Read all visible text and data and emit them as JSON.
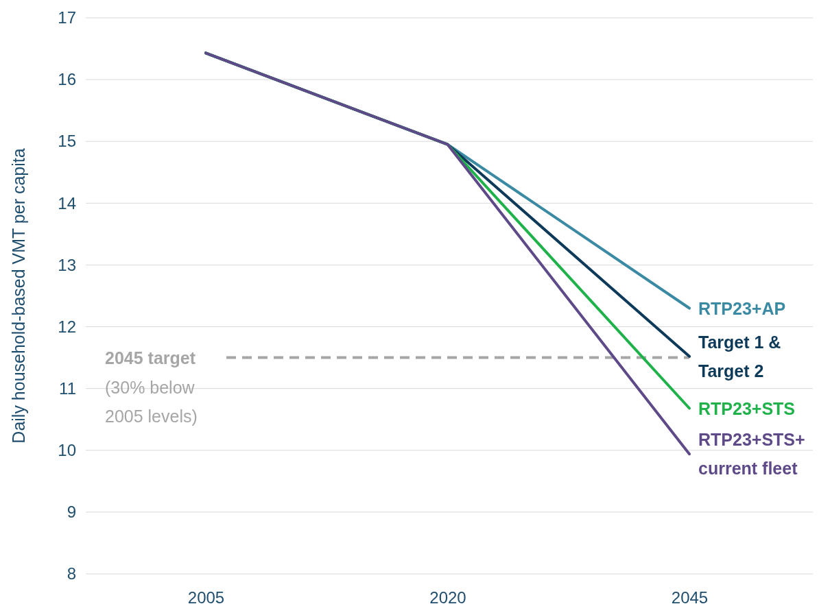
{
  "chart_data": {
    "type": "line",
    "ylabel": "Daily household-based VMT per capita",
    "categories": [
      "2005",
      "2020",
      "2045"
    ],
    "series": [
      {
        "name": "RTP23+AP",
        "color": "#3a8aa3",
        "values": [
          16.43,
          14.95,
          12.3
        ]
      },
      {
        "name": "Target 1 & Target 2",
        "color": "#0e3a5a",
        "values": [
          16.43,
          14.95,
          11.52
        ]
      },
      {
        "name": "RTP23+STS",
        "color": "#1fb24a",
        "values": [
          16.43,
          14.95,
          10.68
        ]
      },
      {
        "name": "RTP23+STS+ current fleet",
        "color": "#5e4a88",
        "values": [
          16.43,
          14.95,
          9.94
        ]
      }
    ],
    "ylim": [
      8,
      17
    ],
    "yticks": [
      8,
      9,
      10,
      11,
      12,
      13,
      14,
      15,
      16,
      17
    ],
    "grid": "y",
    "marker": "none",
    "line_style": "solid",
    "ref_lines": [
      {
        "axis": "y",
        "value": 11.5,
        "label": "2045 target",
        "color": "#a6a6a6",
        "line_style": "dashed"
      }
    ],
    "annotations": [
      "(30% below 2005 levels)"
    ]
  }
}
